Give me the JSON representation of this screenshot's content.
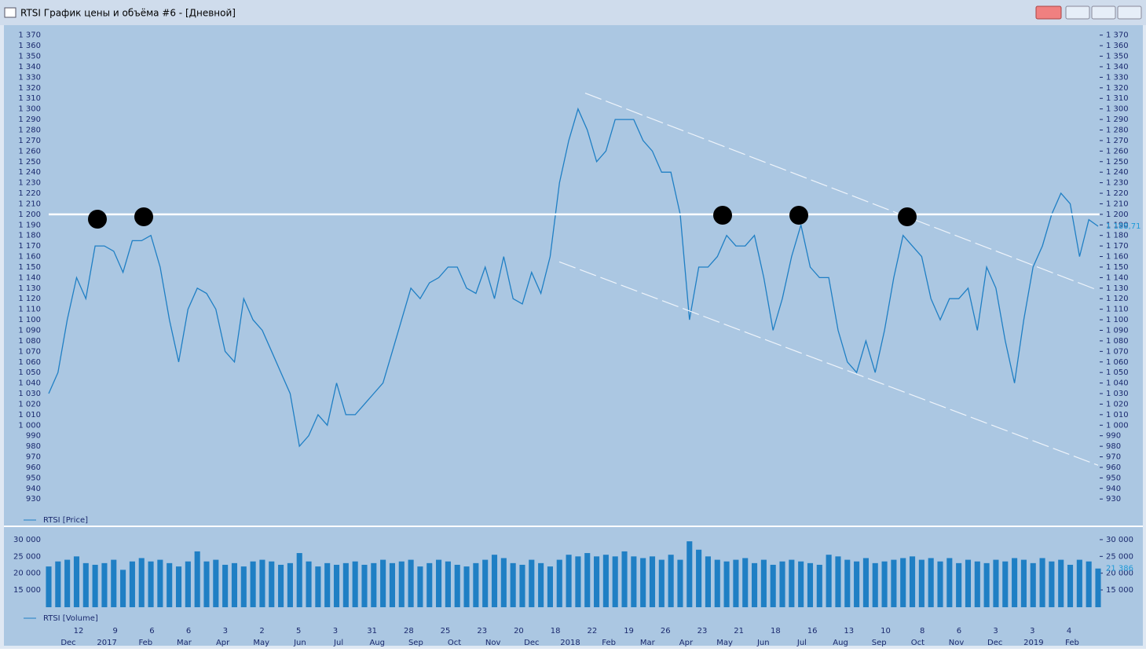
{
  "window": {
    "title": "RTSI График цены и объёма #6 - [Дневной]"
  },
  "chart_data": [
    {
      "type": "line",
      "legend": "RTSI [Price]",
      "color": "#1f7fc4",
      "values": [
        1030,
        1050,
        1100,
        1140,
        1120,
        1170,
        1170,
        1165,
        1145,
        1175,
        1175,
        1180,
        1150,
        1100,
        1060,
        1110,
        1130,
        1125,
        1110,
        1070,
        1060,
        1120,
        1100,
        1090,
        1070,
        1050,
        1030,
        980,
        990,
        1010,
        1000,
        1040,
        1010,
        1010,
        1020,
        1030,
        1040,
        1070,
        1100,
        1130,
        1120,
        1135,
        1140,
        1150,
        1150,
        1130,
        1125,
        1150,
        1120,
        1160,
        1120,
        1115,
        1145,
        1125,
        1160,
        1230,
        1270,
        1300,
        1280,
        1250,
        1260,
        1290,
        1290,
        1290,
        1270,
        1260,
        1240,
        1240,
        1200,
        1100,
        1150,
        1150,
        1160,
        1180,
        1170,
        1170,
        1180,
        1140,
        1090,
        1120,
        1160,
        1190,
        1150,
        1140,
        1140,
        1090,
        1060,
        1050,
        1080,
        1050,
        1090,
        1140,
        1180,
        1170,
        1160,
        1120,
        1100,
        1120,
        1120,
        1130,
        1090,
        1150,
        1130,
        1080,
        1040,
        1100,
        1150,
        1170,
        1200,
        1220,
        1210,
        1160,
        1195,
        1188.71
      ],
      "last_value": {
        "value": 1188.71,
        "label": "1 188,71"
      },
      "horizontal_line": 1200,
      "channel_lines": [
        [
          1315,
          1128
        ],
        [
          1155,
          962
        ]
      ],
      "ylim": [
        919,
        1375
      ],
      "yticks": [
        930,
        940,
        950,
        960,
        970,
        980,
        990,
        {
          "value": 1000,
          "label": "1 000"
        },
        {
          "value": 1010,
          "label": "1 010"
        },
        {
          "value": 1020,
          "label": "1 020"
        },
        {
          "value": 1030,
          "label": "1 030"
        },
        {
          "value": 1040,
          "label": "1 040"
        },
        {
          "value": 1050,
          "label": "1 050"
        },
        {
          "value": 1060,
          "label": "1 060"
        },
        {
          "value": 1070,
          "label": "1 070"
        },
        {
          "value": 1080,
          "label": "1 080"
        },
        {
          "value": 1090,
          "label": "1 090"
        },
        {
          "value": 1100,
          "label": "1 100"
        },
        {
          "value": 1110,
          "label": "1 110"
        },
        {
          "value": 1120,
          "label": "1 120"
        },
        {
          "value": 1130,
          "label": "1 130"
        },
        {
          "value": 1140,
          "label": "1 140"
        },
        {
          "value": 1150,
          "label": "1 150"
        },
        {
          "value": 1160,
          "label": "1 160"
        },
        {
          "value": 1170,
          "label": "1 170"
        },
        {
          "value": 1180,
          "label": "1 180"
        },
        {
          "value": 1190,
          "label": "1 190"
        },
        {
          "value": 1200,
          "label": "1 200"
        },
        {
          "value": 1210,
          "label": "1 210"
        },
        {
          "value": 1220,
          "label": "1 220"
        },
        {
          "value": 1230,
          "label": "1 230"
        },
        {
          "value": 1240,
          "label": "1 240"
        },
        {
          "value": 1250,
          "label": "1 250"
        },
        {
          "value": 1260,
          "label": "1 260"
        },
        {
          "value": 1270,
          "label": "1 270"
        },
        {
          "value": 1280,
          "label": "1 280"
        },
        {
          "value": 1290,
          "label": "1 290"
        },
        {
          "value": 1300,
          "label": "1 300"
        },
        {
          "value": 1310,
          "label": "1 310"
        },
        {
          "value": 1320,
          "label": "1 320"
        },
        {
          "value": 1330,
          "label": "1 330"
        },
        {
          "value": 1340,
          "label": "1 340"
        },
        {
          "value": 1350,
          "label": "1 350"
        },
        {
          "value": 1360,
          "label": "1 360"
        },
        {
          "value": 1370,
          "label": "1 370"
        }
      ]
    },
    {
      "type": "bar",
      "legend": "RTSI [Volume]",
      "color": "#1f7fc4",
      "values": [
        22000,
        23500,
        24000,
        25000,
        23000,
        22500,
        23000,
        24000,
        21000,
        23500,
        24500,
        23500,
        24000,
        23000,
        22000,
        23500,
        26500,
        23500,
        24000,
        22500,
        23000,
        22000,
        23500,
        24000,
        23500,
        22500,
        23000,
        26000,
        23500,
        22000,
        23000,
        22500,
        23000,
        23500,
        22500,
        23000,
        24000,
        23000,
        23500,
        24000,
        22000,
        23000,
        24000,
        23500,
        22500,
        22000,
        23000,
        24000,
        25500,
        24500,
        23000,
        22500,
        24000,
        23000,
        22000,
        24000,
        25500,
        25000,
        26000,
        25000,
        25500,
        25000,
        26500,
        25000,
        24500,
        25000,
        24000,
        25500,
        24000,
        29500,
        27000,
        25000,
        24000,
        23500,
        24000,
        24500,
        23000,
        24000,
        22500,
        23500,
        24000,
        23500,
        23000,
        22500,
        25500,
        25000,
        24000,
        23500,
        24500,
        23000,
        23500,
        24000,
        24500,
        25000,
        24000,
        24500,
        23500,
        24500,
        23000,
        24000,
        23500,
        23000,
        24000,
        23500,
        24500,
        24000,
        23000,
        24500,
        23500,
        24000,
        22500,
        24000,
        23500,
        21386
      ],
      "last_value": {
        "value": 21386,
        "label": "21 386"
      },
      "ylim": [
        9850,
        32100
      ],
      "yticks": [
        {
          "value": 15000,
          "label": "15 000"
        },
        {
          "value": 20000,
          "label": "20 000"
        },
        {
          "value": 25000,
          "label": "25 000"
        },
        {
          "value": 30000,
          "label": "30 000"
        }
      ]
    }
  ],
  "x_axis": {
    "days": [
      "12",
      "9",
      "6",
      "6",
      "3",
      "2",
      "5",
      "3",
      "31",
      "28",
      "25",
      "23",
      "20",
      "18",
      "22",
      "19",
      "26",
      "23",
      "21",
      "18",
      "16",
      "13",
      "10",
      "8",
      "6",
      "3",
      "3",
      "4"
    ],
    "months": [
      "Dec",
      "2017",
      "Feb",
      "Mar",
      "Apr",
      "May",
      "Jun",
      "Jul",
      "Aug",
      "Sep",
      "Oct",
      "Nov",
      "Dec",
      "2018",
      "Feb",
      "Mar",
      "Apr",
      "May",
      "Jun",
      "Jul",
      "Aug",
      "Sep",
      "Oct",
      "Nov",
      "Dec",
      "2019",
      "Feb"
    ]
  }
}
